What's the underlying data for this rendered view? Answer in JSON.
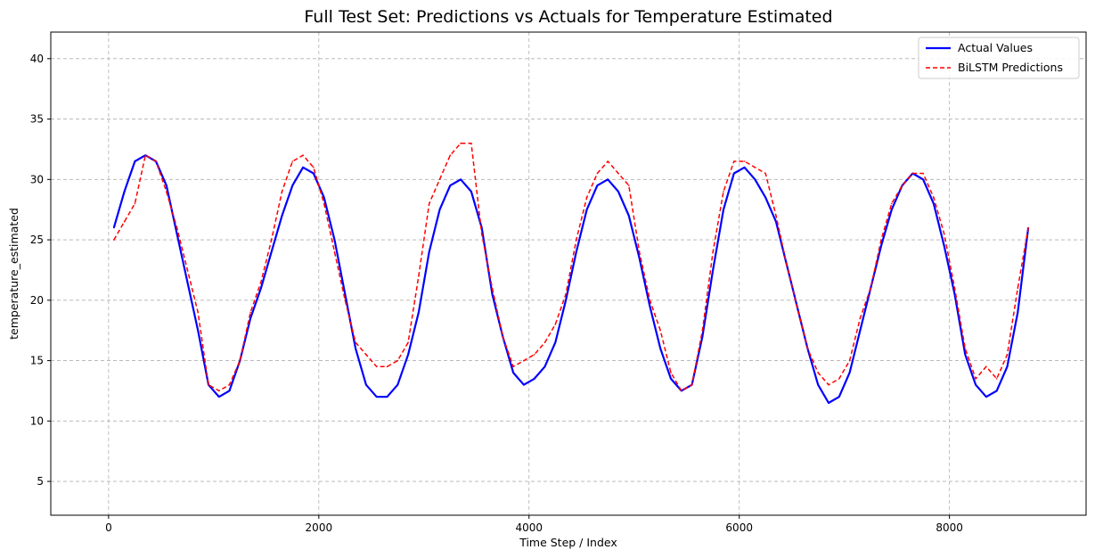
{
  "chart_data": {
    "type": "line",
    "title": "Full Test Set: Predictions vs Actuals for Temperature Estimated",
    "xlabel": "Time Step / Index",
    "ylabel": "temperature_estimated",
    "xlim": [
      -550,
      9300
    ],
    "ylim": [
      2.2,
      42.2
    ],
    "xticks": [
      0,
      2000,
      4000,
      6000,
      8000
    ],
    "yticks": [
      5,
      10,
      15,
      20,
      25,
      30,
      35,
      40
    ],
    "grid": true,
    "legend_position": "top-right",
    "series": [
      {
        "name": "Actual Values",
        "color": "#0000ff",
        "style": "solid",
        "x": [
          50,
          150,
          250,
          350,
          450,
          550,
          650,
          750,
          850,
          950,
          1050,
          1150,
          1250,
          1350,
          1450,
          1550,
          1650,
          1750,
          1850,
          1950,
          2050,
          2150,
          2250,
          2350,
          2450,
          2550,
          2650,
          2750,
          2850,
          2950,
          3050,
          3150,
          3250,
          3350,
          3450,
          3550,
          3650,
          3750,
          3850,
          3950,
          4050,
          4150,
          4250,
          4350,
          4450,
          4550,
          4650,
          4750,
          4850,
          4950,
          5050,
          5150,
          5250,
          5350,
          5450,
          5550,
          5650,
          5750,
          5850,
          5950,
          6050,
          6150,
          6250,
          6350,
          6450,
          6550,
          6650,
          6750,
          6850,
          6950,
          7050,
          7150,
          7250,
          7350,
          7450,
          7550,
          7650,
          7750,
          7850,
          7950,
          8050,
          8150,
          8250,
          8350,
          8450,
          8550,
          8650,
          8750
        ],
        "y": [
          26.0,
          29.0,
          31.5,
          32.0,
          31.5,
          29.5,
          25.5,
          21.5,
          17.5,
          13.0,
          12.0,
          12.5,
          15.0,
          18.5,
          21.0,
          24.0,
          27.0,
          29.5,
          31.0,
          30.5,
          28.5,
          25.0,
          20.5,
          16.0,
          13.0,
          12.0,
          12.0,
          13.0,
          15.5,
          19.0,
          24.0,
          27.5,
          29.5,
          30.0,
          29.0,
          26.0,
          20.5,
          17.0,
          14.0,
          13.0,
          13.5,
          14.5,
          16.5,
          20.0,
          24.0,
          27.5,
          29.5,
          30.0,
          29.0,
          27.0,
          23.5,
          19.5,
          16.0,
          13.5,
          12.5,
          13.0,
          17.0,
          22.5,
          27.5,
          30.5,
          31.0,
          30.0,
          28.5,
          26.5,
          23.0,
          19.5,
          16.0,
          13.0,
          11.5,
          12.0,
          14.0,
          17.5,
          21.0,
          24.5,
          27.5,
          29.5,
          30.5,
          30.0,
          28.0,
          24.5,
          20.5,
          15.5,
          13.0,
          12.0,
          12.5,
          14.5,
          19.0,
          26.0
        ]
      },
      {
        "name": "BiLSTM Predictions",
        "color": "#ff0000",
        "style": "dashed",
        "x": [
          50,
          150,
          250,
          350,
          450,
          550,
          650,
          750,
          850,
          950,
          1050,
          1150,
          1250,
          1350,
          1450,
          1550,
          1650,
          1750,
          1850,
          1950,
          2050,
          2150,
          2250,
          2350,
          2450,
          2550,
          2650,
          2750,
          2850,
          2950,
          3050,
          3150,
          3250,
          3350,
          3450,
          3550,
          3650,
          3750,
          3850,
          3950,
          4050,
          4150,
          4250,
          4350,
          4450,
          4550,
          4650,
          4750,
          4850,
          4950,
          5050,
          5150,
          5250,
          5350,
          5450,
          5550,
          5650,
          5750,
          5850,
          5950,
          6050,
          6150,
          6250,
          6350,
          6450,
          6550,
          6650,
          6750,
          6850,
          6950,
          7050,
          7150,
          7250,
          7350,
          7450,
          7550,
          7650,
          7750,
          7850,
          7950,
          8050,
          8150,
          8250,
          8350,
          8450,
          8550,
          8650,
          8750
        ],
        "y": [
          25.0,
          26.5,
          28.0,
          32.0,
          31.5,
          29.0,
          26.0,
          22.5,
          19.0,
          13.0,
          12.5,
          13.0,
          15.0,
          19.0,
          21.5,
          25.0,
          29.0,
          31.5,
          32.0,
          31.0,
          28.0,
          24.0,
          20.0,
          16.5,
          15.5,
          14.5,
          14.5,
          15.0,
          16.5,
          22.0,
          28.0,
          30.0,
          32.0,
          33.0,
          33.0,
          25.5,
          21.0,
          17.0,
          14.5,
          15.0,
          15.5,
          16.5,
          18.0,
          20.5,
          25.0,
          28.5,
          30.5,
          31.5,
          30.5,
          29.5,
          24.0,
          20.0,
          17.5,
          14.0,
          12.5,
          13.0,
          17.5,
          24.0,
          29.0,
          31.5,
          31.5,
          31.0,
          30.5,
          27.0,
          23.0,
          19.5,
          16.0,
          14.0,
          13.0,
          13.5,
          15.0,
          18.5,
          21.0,
          25.0,
          28.0,
          29.5,
          30.5,
          30.5,
          28.5,
          25.5,
          21.0,
          16.0,
          13.5,
          14.5,
          13.5,
          15.5,
          21.0,
          26.0
        ]
      }
    ]
  }
}
